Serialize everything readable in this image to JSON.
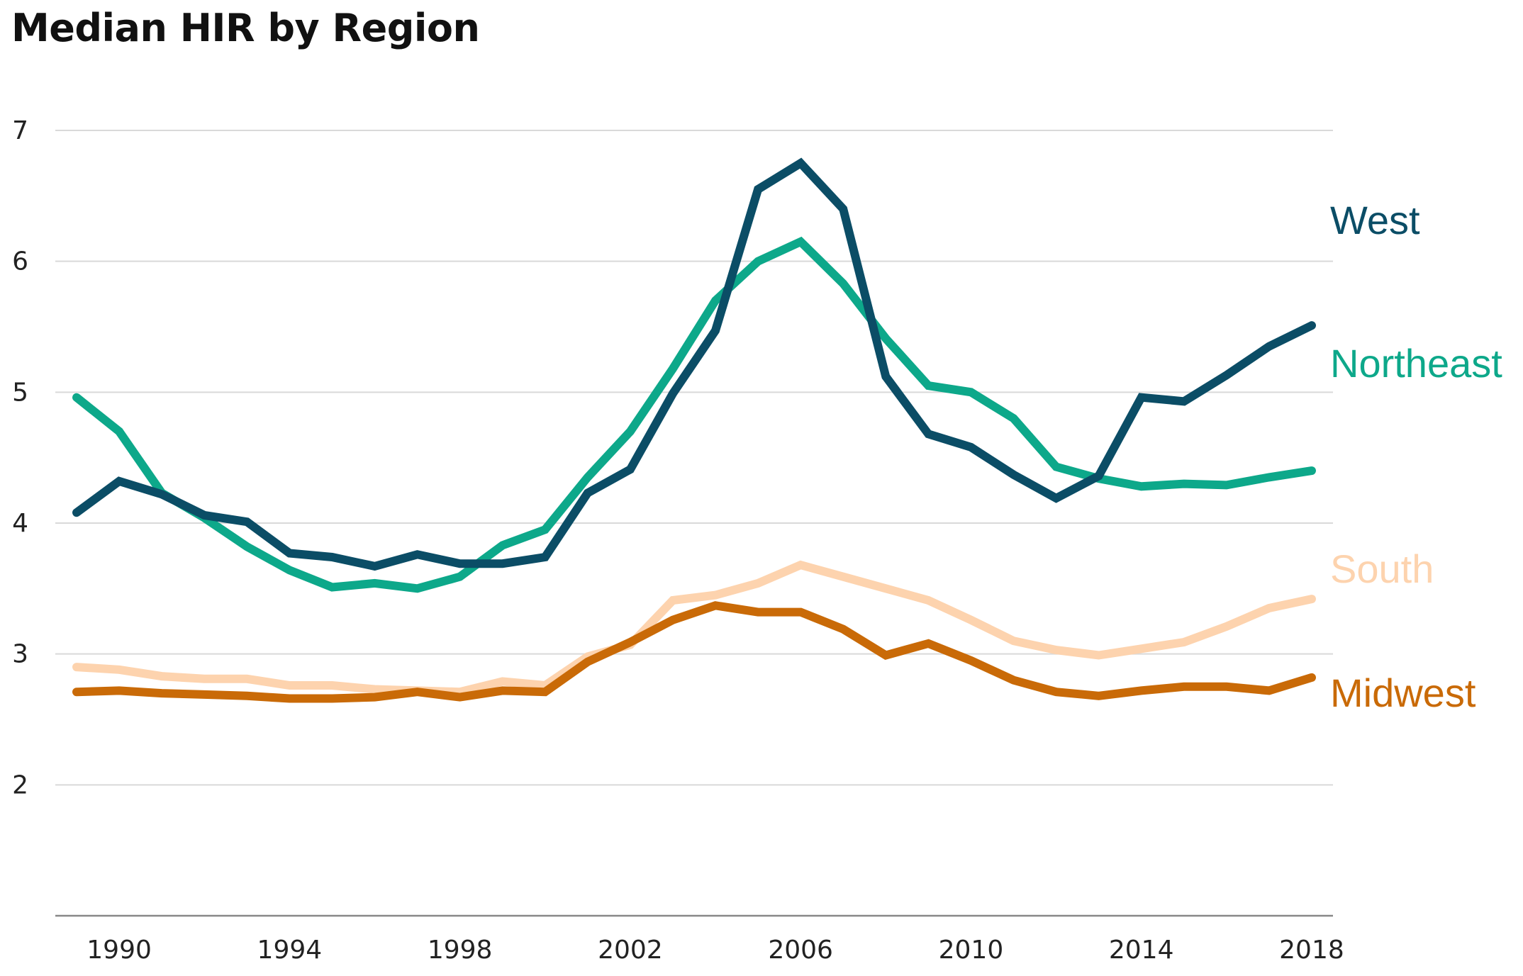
{
  "chart_data": {
    "type": "line",
    "title": "Median HIR by Region",
    "xlabel": "",
    "ylabel": "",
    "x": [
      1989,
      1990,
      1991,
      1992,
      1993,
      1994,
      1995,
      1996,
      1997,
      1998,
      1999,
      2000,
      2001,
      2002,
      2003,
      2004,
      2005,
      2006,
      2007,
      2008,
      2009,
      2010,
      2011,
      2012,
      2013,
      2014,
      2015,
      2016,
      2017,
      2018
    ],
    "x_ticks": [
      "1990",
      "1994",
      "1998",
      "2002",
      "2006",
      "2010",
      "2014",
      "2018"
    ],
    "y_ticks": [
      "2",
      "3",
      "4",
      "5",
      "6",
      "7"
    ],
    "xlim": [
      1988.5,
      2018.5
    ],
    "ylim": [
      1,
      7
    ],
    "grid": "horizontal",
    "legend": "direct-labels-right",
    "series": [
      {
        "name": "West",
        "color": "#0b4d66",
        "values": [
          4.08,
          4.32,
          4.22,
          4.06,
          4.01,
          3.77,
          3.74,
          3.67,
          3.76,
          3.69,
          3.69,
          3.74,
          4.23,
          4.41,
          4.99,
          5.47,
          6.55,
          6.75,
          6.4,
          5.12,
          4.68,
          4.58,
          4.37,
          4.19,
          4.36,
          4.96,
          4.93,
          5.13,
          5.35,
          5.51
        ]
      },
      {
        "name": "Northeast",
        "color": "#0da88a",
        "values": [
          4.96,
          4.7,
          4.23,
          4.04,
          3.82,
          3.64,
          3.51,
          3.54,
          3.5,
          3.59,
          3.83,
          3.95,
          4.35,
          4.7,
          5.18,
          5.7,
          6.0,
          6.15,
          5.83,
          5.41,
          5.05,
          5.0,
          4.8,
          4.43,
          4.34,
          4.28,
          4.3,
          4.29,
          4.35,
          4.4
        ]
      },
      {
        "name": "South",
        "color": "#fdd3ae",
        "values": [
          2.9,
          2.88,
          2.83,
          2.81,
          2.81,
          2.76,
          2.76,
          2.73,
          2.72,
          2.71,
          2.79,
          2.76,
          2.98,
          3.07,
          3.41,
          3.45,
          3.54,
          3.68,
          3.59,
          3.5,
          3.41,
          3.26,
          3.1,
          3.03,
          2.99,
          3.04,
          3.09,
          3.21,
          3.35,
          3.42
        ]
      },
      {
        "name": "Midwest",
        "color": "#c96a07",
        "values": [
          2.71,
          2.72,
          2.7,
          2.69,
          2.68,
          2.66,
          2.66,
          2.67,
          2.71,
          2.67,
          2.72,
          2.71,
          2.94,
          3.09,
          3.26,
          3.37,
          3.32,
          3.32,
          3.19,
          2.99,
          3.08,
          2.95,
          2.8,
          2.71,
          2.68,
          2.72,
          2.75,
          2.75,
          2.72,
          2.82
        ]
      }
    ]
  }
}
